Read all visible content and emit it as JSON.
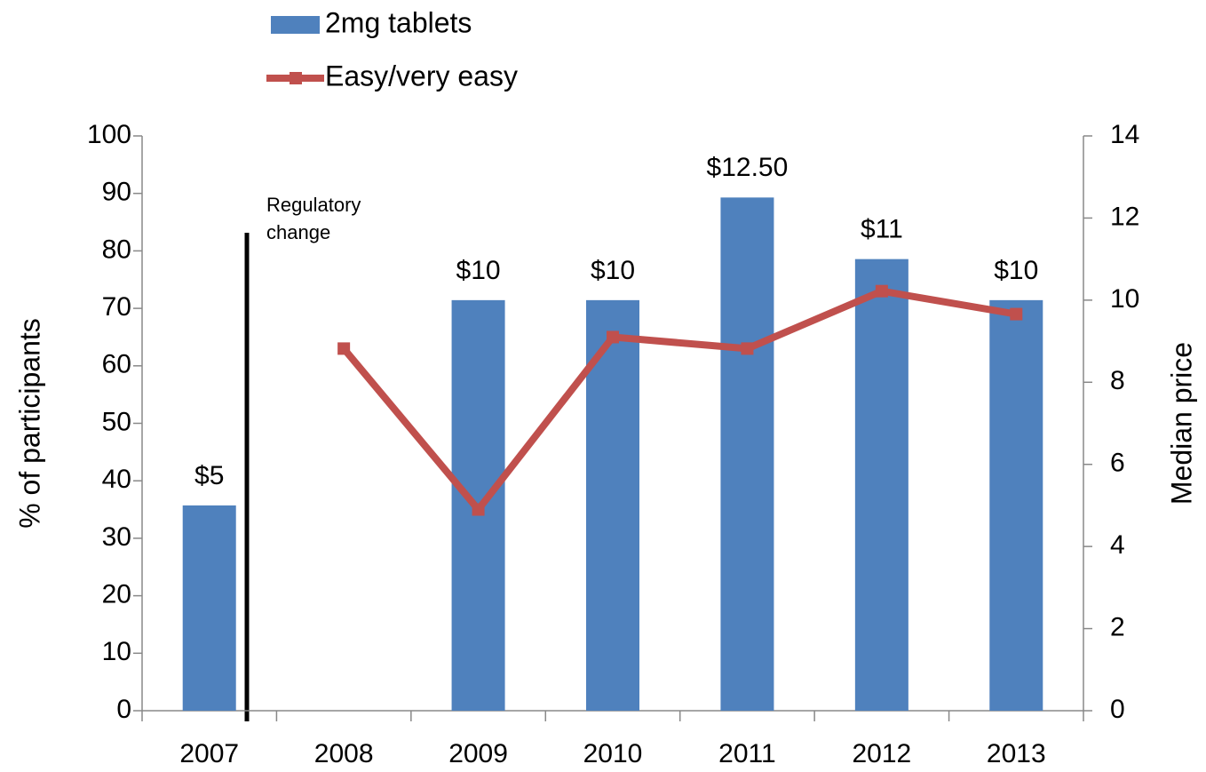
{
  "chart_data": {
    "type": "bar-line",
    "categories": [
      "2007",
      "2008",
      "2009",
      "2010",
      "2011",
      "2012",
      "2013"
    ],
    "series": [
      {
        "name": "2mg tablets",
        "type": "bar",
        "axis": "y2",
        "color": "#4f81bd",
        "values": [
          5,
          null,
          10,
          10,
          12.5,
          11,
          10
        ],
        "value_labels": [
          "$5",
          null,
          "$10",
          "$10",
          "$12.50",
          "$11",
          "$10"
        ]
      },
      {
        "name": "Easy/very easy",
        "type": "line",
        "axis": "y",
        "color": "#c0504d",
        "values": [
          null,
          63,
          35,
          65,
          63,
          73,
          69
        ]
      }
    ],
    "ylabel": "% of participants",
    "y2label": "Median price",
    "ylim": [
      0,
      100
    ],
    "yticks": [
      0,
      10,
      20,
      30,
      40,
      50,
      60,
      70,
      80,
      90,
      100
    ],
    "y2lim": [
      0,
      14
    ],
    "y2ticks": [
      0,
      2,
      4,
      6,
      8,
      10,
      12,
      14
    ],
    "annotation": "Regulatory change",
    "legend": "top"
  }
}
